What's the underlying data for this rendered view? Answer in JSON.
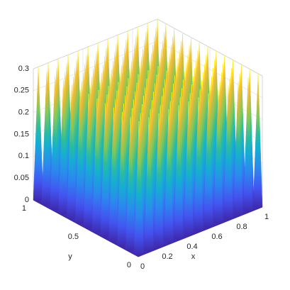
{
  "chart_data": {
    "type": "surface",
    "colormap": "parula",
    "x": [
      0,
      0.04,
      0.08,
      0.12,
      0.16,
      0.2,
      0.24,
      0.28,
      0.32,
      0.36,
      0.4,
      0.44,
      0.48,
      0.52,
      0.56,
      0.6,
      0.64,
      0.68,
      0.72,
      0.76,
      0.8,
      0.84,
      0.88,
      0.92,
      0.96,
      1
    ],
    "y": [
      0,
      0.04,
      0.08,
      0.12,
      0.16,
      0.2,
      0.24,
      0.28,
      0.32,
      0.36,
      0.4,
      0.44,
      0.48,
      0.52,
      0.56,
      0.6,
      0.64,
      0.68,
      0.72,
      0.76,
      0.8,
      0.84,
      0.88,
      0.92,
      0.96,
      1
    ],
    "z": [
      [
        0,
        0,
        0,
        0,
        0,
        0,
        0,
        0,
        0,
        0,
        0,
        0,
        0,
        0,
        0,
        0,
        0,
        0,
        0,
        0,
        0,
        0,
        0,
        0,
        0,
        0
      ],
      [
        0,
        0.3,
        0,
        0.3,
        0,
        0.3,
        0,
        0.3,
        0,
        0.3,
        0,
        0.3,
        0,
        0.3,
        0,
        0.3,
        0,
        0.3,
        0,
        0.3,
        0,
        0.3,
        0,
        0.3,
        0,
        0.3
      ],
      [
        0,
        0,
        0,
        0,
        0,
        0,
        0,
        0,
        0,
        0,
        0,
        0,
        0,
        0,
        0,
        0,
        0,
        0,
        0,
        0,
        0,
        0,
        0,
        0,
        0,
        0
      ],
      [
        0,
        0.3,
        0,
        0.3,
        0,
        0.3,
        0,
        0.3,
        0,
        0.3,
        0,
        0.3,
        0,
        0.3,
        0,
        0.3,
        0,
        0.3,
        0,
        0.3,
        0,
        0.3,
        0,
        0.3,
        0,
        0.3
      ],
      [
        0,
        0,
        0,
        0,
        0,
        0,
        0,
        0,
        0,
        0,
        0,
        0,
        0,
        0,
        0,
        0,
        0,
        0,
        0,
        0,
        0,
        0,
        0,
        0,
        0,
        0
      ],
      [
        0,
        0.3,
        0,
        0.3,
        0,
        0.3,
        0,
        0.3,
        0,
        0.3,
        0,
        0.3,
        0,
        0.3,
        0,
        0.3,
        0,
        0.3,
        0,
        0.3,
        0,
        0.3,
        0,
        0.3,
        0,
        0.3
      ],
      [
        0,
        0,
        0,
        0,
        0,
        0,
        0,
        0,
        0,
        0,
        0,
        0,
        0,
        0,
        0,
        0,
        0,
        0,
        0,
        0,
        0,
        0,
        0,
        0,
        0,
        0
      ],
      [
        0,
        0.3,
        0,
        0.3,
        0,
        0.3,
        0,
        0.3,
        0,
        0.3,
        0,
        0.3,
        0,
        0.3,
        0,
        0.3,
        0,
        0.3,
        0,
        0.3,
        0,
        0.3,
        0,
        0.3,
        0,
        0.3
      ],
      [
        0,
        0,
        0,
        0,
        0,
        0,
        0,
        0,
        0,
        0,
        0,
        0,
        0,
        0,
        0,
        0,
        0,
        0,
        0,
        0,
        0,
        0,
        0,
        0,
        0,
        0
      ],
      [
        0,
        0.3,
        0,
        0.3,
        0,
        0.3,
        0,
        0.3,
        0,
        0.3,
        0,
        0.3,
        0,
        0.3,
        0,
        0.3,
        0,
        0.3,
        0,
        0.3,
        0,
        0.3,
        0,
        0.3,
        0,
        0.3
      ],
      [
        0,
        0,
        0,
        0,
        0,
        0,
        0,
        0,
        0,
        0,
        0,
        0,
        0,
        0,
        0,
        0,
        0,
        0,
        0,
        0,
        0,
        0,
        0,
        0,
        0,
        0
      ],
      [
        0,
        0.3,
        0,
        0.3,
        0,
        0.3,
        0,
        0.3,
        0,
        0.3,
        0,
        0.3,
        0,
        0.3,
        0,
        0.3,
        0,
        0.3,
        0,
        0.3,
        0,
        0.3,
        0,
        0.3,
        0,
        0.3
      ],
      [
        0,
        0,
        0,
        0,
        0,
        0,
        0,
        0,
        0,
        0,
        0,
        0,
        0,
        0,
        0,
        0,
        0,
        0,
        0,
        0,
        0,
        0,
        0,
        0,
        0,
        0
      ],
      [
        0,
        0.3,
        0,
        0.3,
        0,
        0.3,
        0,
        0.3,
        0,
        0.3,
        0,
        0.3,
        0,
        0.3,
        0,
        0.3,
        0,
        0.3,
        0,
        0.3,
        0,
        0.3,
        0,
        0.3,
        0,
        0.3
      ],
      [
        0,
        0,
        0,
        0,
        0,
        0,
        0,
        0,
        0,
        0,
        0,
        0,
        0,
        0,
        0,
        0,
        0,
        0,
        0,
        0,
        0,
        0,
        0,
        0,
        0,
        0
      ],
      [
        0,
        0.3,
        0,
        0.3,
        0,
        0.3,
        0,
        0.3,
        0,
        0.3,
        0,
        0.3,
        0,
        0.3,
        0,
        0.3,
        0,
        0.3,
        0,
        0.3,
        0,
        0.3,
        0,
        0.3,
        0,
        0.3
      ],
      [
        0,
        0,
        0,
        0,
        0,
        0,
        0,
        0,
        0,
        0,
        0,
        0,
        0,
        0,
        0,
        0,
        0,
        0,
        0,
        0,
        0,
        0,
        0,
        0,
        0,
        0
      ],
      [
        0,
        0.3,
        0,
        0.3,
        0,
        0.3,
        0,
        0.3,
        0,
        0.3,
        0,
        0.3,
        0,
        0.3,
        0,
        0.3,
        0,
        0.3,
        0,
        0.3,
        0,
        0.3,
        0,
        0.3,
        0,
        0.3
      ],
      [
        0,
        0,
        0,
        0,
        0,
        0,
        0,
        0,
        0,
        0,
        0,
        0,
        0,
        0,
        0,
        0,
        0,
        0,
        0,
        0,
        0,
        0,
        0,
        0,
        0,
        0
      ],
      [
        0,
        0.3,
        0,
        0.3,
        0,
        0.3,
        0,
        0.3,
        0,
        0.3,
        0,
        0.3,
        0,
        0.3,
        0,
        0.3,
        0,
        0.3,
        0,
        0.3,
        0,
        0.3,
        0,
        0.3,
        0,
        0.3
      ],
      [
        0,
        0,
        0,
        0,
        0,
        0,
        0,
        0,
        0,
        0,
        0,
        0,
        0,
        0,
        0,
        0,
        0,
        0,
        0,
        0,
        0,
        0,
        0,
        0,
        0,
        0
      ],
      [
        0,
        0.3,
        0,
        0.3,
        0,
        0.3,
        0,
        0.3,
        0,
        0.3,
        0,
        0.3,
        0,
        0.3,
        0,
        0.3,
        0,
        0.3,
        0,
        0.3,
        0,
        0.3,
        0,
        0.3,
        0,
        0.3
      ],
      [
        0,
        0,
        0,
        0,
        0,
        0,
        0,
        0,
        0,
        0,
        0,
        0,
        0,
        0,
        0,
        0,
        0,
        0,
        0,
        0,
        0,
        0,
        0,
        0,
        0,
        0
      ],
      [
        0,
        0.3,
        0,
        0.3,
        0,
        0.3,
        0,
        0.3,
        0,
        0.3,
        0,
        0.3,
        0,
        0.3,
        0,
        0.3,
        0,
        0.3,
        0,
        0.3,
        0,
        0.3,
        0,
        0.3,
        0,
        0.3
      ],
      [
        0,
        0,
        0,
        0,
        0,
        0,
        0,
        0,
        0,
        0,
        0,
        0,
        0,
        0,
        0,
        0,
        0,
        0,
        0,
        0,
        0,
        0,
        0,
        0,
        0,
        0
      ],
      [
        0,
        0.3,
        0,
        0.3,
        0,
        0.3,
        0,
        0.3,
        0,
        0.3,
        0,
        0.3,
        0,
        0.3,
        0,
        0.3,
        0,
        0.3,
        0,
        0.3,
        0,
        0.3,
        0,
        0.3,
        0,
        0.3
      ]
    ],
    "xlim": [
      0,
      1
    ],
    "ylim": [
      0,
      1
    ],
    "zlim": [
      0,
      0.3
    ],
    "xticks": [
      0,
      0.2,
      0.4,
      0.6,
      0.8,
      1
    ],
    "yticks": [
      0,
      0.5,
      1
    ],
    "zticks": [
      0,
      0.05,
      0.1,
      0.15,
      0.2,
      0.25,
      0.3
    ],
    "xlabel": "x",
    "ylabel": "y",
    "grid": true
  }
}
